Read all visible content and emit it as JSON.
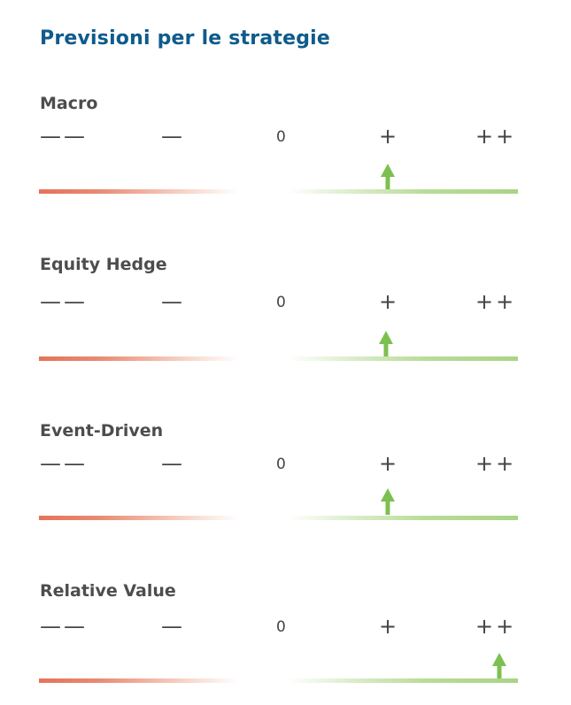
{
  "title": "Previsioni per le strategie",
  "scale_labels": {
    "double_negative": "——",
    "negative": "—",
    "neutral": "0",
    "positive": "+",
    "double_positive": "++"
  },
  "colors": {
    "title": "#0e5b8c",
    "negative_bar": "#e5735a",
    "positive_bar": "#a9d486",
    "arrow": "#7cc050"
  },
  "strategies": [
    {
      "name": "Macro",
      "outlook": "+"
    },
    {
      "name": "Equity Hedge",
      "outlook": "+"
    },
    {
      "name": "Event-Driven",
      "outlook": "+"
    },
    {
      "name": "Relative Value",
      "outlook": "++"
    }
  ],
  "icons": {
    "outlook_marker": "arrow-up-icon"
  }
}
